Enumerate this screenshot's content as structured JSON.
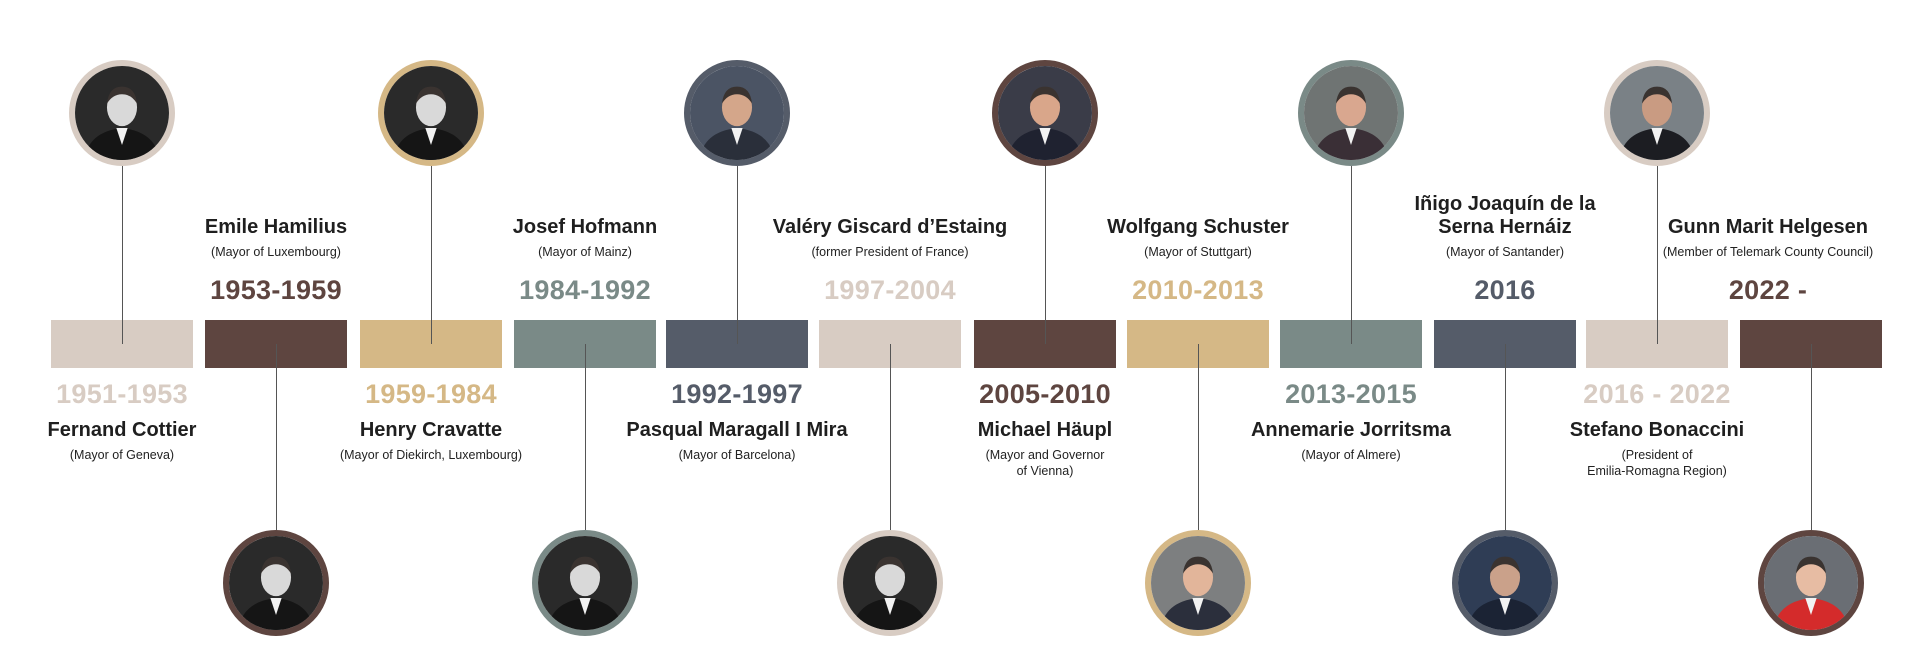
{
  "colors": {
    "taupe_light": "#d8ccc3",
    "brown": "#5e4540",
    "gold": "#d5b886",
    "slate_green": "#7a8a87",
    "slate_blue": "#555c69",
    "connector": "#555555"
  },
  "entries": [
    {
      "name": "Fernand Cottier",
      "role": "(Mayor of Geneva)",
      "years": "1951-1953",
      "color": "#d8ccc3",
      "portrait": "portrait-fernand-cottier"
    },
    {
      "name": "Emile Hamilius",
      "role": "(Mayor of Luxembourg)",
      "years": "1953-1959",
      "color": "#5e4540",
      "portrait": "portrait-emile-hamilius"
    },
    {
      "name": "Henry Cravatte",
      "role": "(Mayor of Diekirch, Luxembourg)",
      "years": "1959-1984",
      "color": "#d5b886",
      "portrait": "portrait-henry-cravatte"
    },
    {
      "name": "Josef Hofmann",
      "role": "(Mayor of Mainz)",
      "years": "1984-1992",
      "color": "#7a8a87",
      "portrait": "portrait-josef-hofmann"
    },
    {
      "name": "Pasqual Maragall I Mira",
      "role": "(Mayor of Barcelona)",
      "years": "1992-1997",
      "color": "#555c69",
      "portrait": "portrait-pasqual-maragall"
    },
    {
      "name": "Valéry Giscard d’Estaing",
      "role": "(former President of France)",
      "years": "1997-2004",
      "color": "#d8ccc3",
      "portrait": "portrait-valery-giscard"
    },
    {
      "name": "Michael Häupl",
      "role": "(Mayor and Governor\nof Vienna)",
      "years": "2005-2010",
      "color": "#5e4540",
      "portrait": "portrait-michael-haupl"
    },
    {
      "name": "Wolfgang Schuster",
      "role": "(Mayor of Stuttgart)",
      "years": "2010-2013",
      "color": "#d5b886",
      "portrait": "portrait-wolfgang-schuster"
    },
    {
      "name": "Annemarie Jorritsma",
      "role": "(Mayor of Almere)",
      "years": "2013-2015",
      "color": "#7a8a87",
      "portrait": "portrait-annemarie-jorritsma"
    },
    {
      "name": "Iñigo Joaquín de la Serna Hernáiz",
      "role": "(Mayor of Santander)",
      "years": "2016",
      "color": "#555c69",
      "portrait": "portrait-inigo-de-la-serna"
    },
    {
      "name": "Stefano Bonaccini",
      "role": "(President of\nEmilia-Romagna Region)",
      "years": "2016 - 2022",
      "color": "#d8ccc3",
      "portrait": "portrait-stefano-bonaccini"
    },
    {
      "name": "Gunn Marit Helgesen",
      "role": "(Member of Telemark County Council)",
      "years": "2022 -",
      "color": "#5e4540",
      "portrait": "portrait-gunn-marit-helgesen"
    }
  ]
}
